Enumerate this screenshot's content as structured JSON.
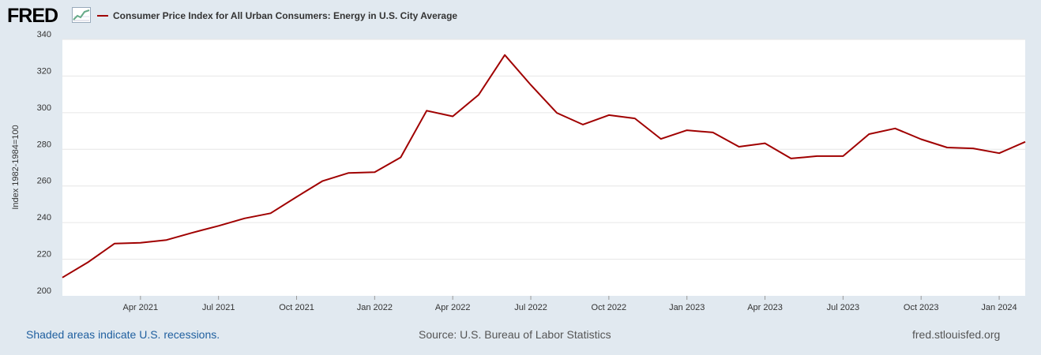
{
  "header": {
    "logo": "FRED",
    "logo_icon": "line-chart-icon",
    "legend_label": "Consumer Price Index for All Urban Consumers: Energy in U.S. City Average"
  },
  "colors": {
    "line": "#a00000",
    "plot_bg": "#ffffff",
    "page_bg": "#e1e9f0",
    "grid": "#e6e6e6"
  },
  "chart_data": {
    "type": "line",
    "title": "Consumer Price Index for All Urban Consumers: Energy in U.S. City Average",
    "xlabel": "",
    "ylabel": "Index 1982-1984=100",
    "ylim": [
      200,
      340
    ],
    "yticks": [
      200,
      220,
      240,
      260,
      280,
      300,
      320,
      340
    ],
    "grid": true,
    "xticks": [
      {
        "label": "Apr 2021",
        "index": 3
      },
      {
        "label": "Jul 2021",
        "index": 6
      },
      {
        "label": "Oct 2021",
        "index": 9
      },
      {
        "label": "Jan 2022",
        "index": 12
      },
      {
        "label": "Apr 2022",
        "index": 15
      },
      {
        "label": "Jul 2022",
        "index": 18
      },
      {
        "label": "Oct 2022",
        "index": 21
      },
      {
        "label": "Jan 2023",
        "index": 24
      },
      {
        "label": "Apr 2023",
        "index": 27
      },
      {
        "label": "Jul 2023",
        "index": 30
      },
      {
        "label": "Oct 2023",
        "index": 33
      },
      {
        "label": "Jan 2024",
        "index": 36
      }
    ],
    "series": [
      {
        "name": "Consumer Price Index for All Urban Consumers: Energy in U.S. City Average",
        "x": [
          "2021-01",
          "2021-02",
          "2021-03",
          "2021-04",
          "2021-05",
          "2021-06",
          "2021-07",
          "2021-08",
          "2021-09",
          "2021-10",
          "2021-11",
          "2021-12",
          "2022-01",
          "2022-02",
          "2022-03",
          "2022-04",
          "2022-05",
          "2022-06",
          "2022-07",
          "2022-08",
          "2022-09",
          "2022-10",
          "2022-11",
          "2022-12",
          "2023-01",
          "2023-02",
          "2023-03",
          "2023-04",
          "2023-05",
          "2023-06",
          "2023-07",
          "2023-08",
          "2023-09",
          "2023-10",
          "2023-11",
          "2023-12",
          "2024-01",
          "2024-02"
        ],
        "values": [
          210.0,
          218.5,
          228.5,
          229.0,
          230.5,
          234.5,
          238.2,
          242.3,
          245.1,
          254.0,
          262.7,
          267.1,
          267.5,
          275.6,
          301.1,
          298.0,
          309.8,
          331.5,
          315.2,
          299.9,
          293.5,
          298.7,
          296.9,
          285.7,
          290.4,
          289.2,
          281.4,
          283.3,
          275.0,
          276.3,
          276.3,
          288.3,
          291.4,
          285.5,
          281.0,
          280.5,
          277.9,
          284.1
        ]
      }
    ]
  },
  "footer": {
    "left": "Shaded areas indicate U.S. recessions.",
    "center": "Source: U.S. Bureau of Labor Statistics",
    "right": "fred.stlouisfed.org"
  }
}
